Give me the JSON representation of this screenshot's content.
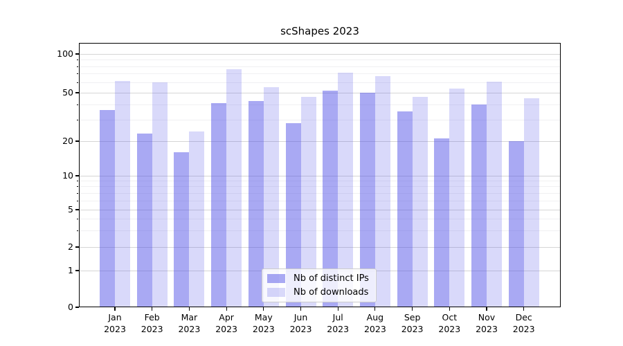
{
  "chart_data": {
    "type": "bar",
    "title": "scShapes 2023",
    "categories": [
      [
        "Jan",
        "2023"
      ],
      [
        "Feb",
        "2023"
      ],
      [
        "Mar",
        "2023"
      ],
      [
        "Apr",
        "2023"
      ],
      [
        "May",
        "2023"
      ],
      [
        "Jun",
        "2023"
      ],
      [
        "Jul",
        "2023"
      ],
      [
        "Aug",
        "2023"
      ],
      [
        "Sep",
        "2023"
      ],
      [
        "Oct",
        "2023"
      ],
      [
        "Nov",
        "2023"
      ],
      [
        "Dec",
        "2023"
      ]
    ],
    "series": [
      {
        "name": "Nb of distinct IPs",
        "color": "rgba(80,80,230,0.49)",
        "values": [
          36,
          23,
          16,
          41,
          43,
          28,
          52,
          50,
          35,
          21,
          40,
          20
        ]
      },
      {
        "name": "Nb of downloads",
        "color": "rgba(80,80,230,0.22)",
        "values": [
          62,
          60,
          24,
          76,
          55,
          46,
          72,
          67,
          46,
          54,
          61,
          45
        ]
      }
    ],
    "y_axis": {
      "scale": "symlog",
      "major_ticks": [
        0,
        1,
        2,
        5,
        10,
        20,
        50,
        100
      ],
      "minor_ticks": [
        3,
        4,
        6,
        7,
        8,
        9,
        30,
        40,
        60,
        70,
        80,
        90
      ],
      "ylim": [
        0,
        120
      ]
    },
    "x_axis": {
      "label_year": "2023"
    },
    "legend": {
      "position": "lower center",
      "entries": [
        "Nb of distinct IPs",
        "Nb of downloads"
      ]
    },
    "grid": true,
    "colors": {
      "major_grid": "#d5d5d5",
      "minor_grid": "#f0f0f2",
      "axis": "#000000",
      "text": "#000000",
      "bar_dark": "rgba(80,80,230,0.49)",
      "bar_light": "rgba(80,80,230,0.22)"
    }
  }
}
